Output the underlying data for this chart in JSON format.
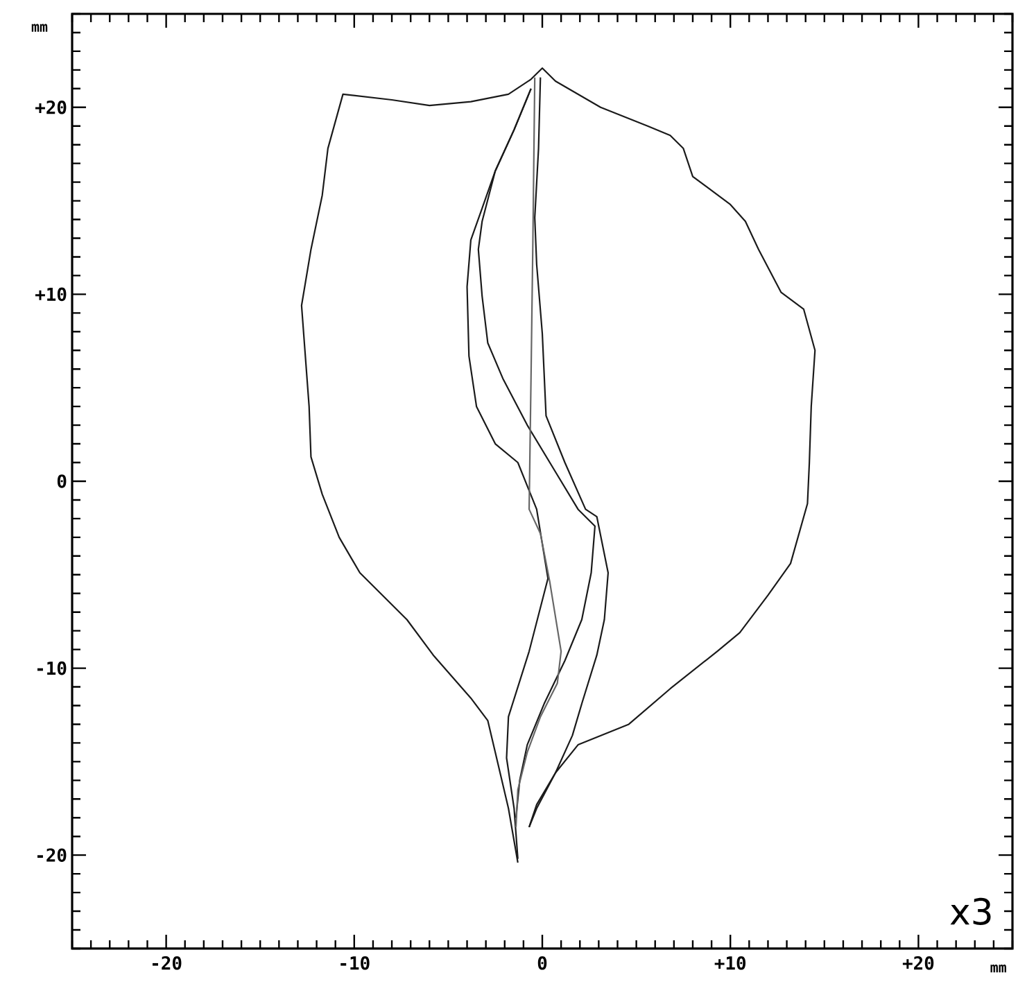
{
  "chart_data": {
    "type": "line",
    "xlabel": "mm",
    "ylabel": "mm",
    "annotations": [
      "x3"
    ],
    "xlim": [
      -25,
      25
    ],
    "ylim": [
      -25,
      25
    ],
    "xticks": [
      {
        "value": -25,
        "label": null
      },
      {
        "value": -24,
        "label": null
      },
      {
        "value": -23,
        "label": null
      },
      {
        "value": -22,
        "label": null
      },
      {
        "value": -21,
        "label": null
      },
      -20,
      {
        "value": -19,
        "label": null
      },
      {
        "value": -18,
        "label": null
      },
      {
        "value": -17,
        "label": null
      },
      {
        "value": -16,
        "label": null
      },
      {
        "value": -15,
        "label": null
      },
      {
        "value": -14,
        "label": null
      },
      {
        "value": -13,
        "label": null
      },
      {
        "value": -12,
        "label": null
      },
      {
        "value": -11,
        "label": null
      },
      -10,
      {
        "value": -9,
        "label": null
      },
      {
        "value": -8,
        "label": null
      },
      {
        "value": -7,
        "label": null
      },
      {
        "value": -6,
        "label": null
      },
      {
        "value": -5,
        "label": null
      },
      {
        "value": -4,
        "label": null
      },
      {
        "value": -3,
        "label": null
      },
      {
        "value": -2,
        "label": null
      },
      {
        "value": -1,
        "label": null
      },
      0,
      {
        "value": 1,
        "label": null
      },
      {
        "value": 2,
        "label": null
      },
      {
        "value": 3,
        "label": null
      },
      {
        "value": 4,
        "label": null
      },
      {
        "value": 5,
        "label": null
      },
      {
        "value": 6,
        "label": null
      },
      {
        "value": 7,
        "label": null
      },
      {
        "value": 8,
        "label": null
      },
      {
        "value": 9,
        "label": null
      },
      {
        "value": 10,
        "label": "+10"
      },
      {
        "value": 11,
        "label": null
      },
      {
        "value": 12,
        "label": null
      },
      {
        "value": 13,
        "label": null
      },
      {
        "value": 14,
        "label": null
      },
      {
        "value": 15,
        "label": null
      },
      {
        "value": 16,
        "label": null
      },
      {
        "value": 17,
        "label": null
      },
      {
        "value": 18,
        "label": null
      },
      {
        "value": 19,
        "label": null
      },
      {
        "value": 20,
        "label": "+20"
      },
      {
        "value": 21,
        "label": null
      },
      {
        "value": 22,
        "label": null
      },
      {
        "value": 23,
        "label": null
      },
      {
        "value": 24,
        "label": null
      },
      {
        "value": 25,
        "label": null
      }
    ],
    "yticks": [
      {
        "value": -25,
        "label": null
      },
      {
        "value": -24,
        "label": null
      },
      {
        "value": -23,
        "label": null
      },
      {
        "value": -22,
        "label": null
      },
      {
        "value": -21,
        "label": null
      },
      -20,
      {
        "value": -19,
        "label": null
      },
      {
        "value": -18,
        "label": null
      },
      {
        "value": -17,
        "label": null
      },
      {
        "value": -16,
        "label": null
      },
      {
        "value": -15,
        "label": null
      },
      {
        "value": -14,
        "label": null
      },
      {
        "value": -13,
        "label": null
      },
      {
        "value": -12,
        "label": null
      },
      {
        "value": -11,
        "label": null
      },
      -10,
      {
        "value": -9,
        "label": null
      },
      {
        "value": -8,
        "label": null
      },
      {
        "value": -7,
        "label": null
      },
      {
        "value": -6,
        "label": null
      },
      {
        "value": -5,
        "label": null
      },
      {
        "value": -4,
        "label": null
      },
      {
        "value": -3,
        "label": null
      },
      {
        "value": -2,
        "label": null
      },
      {
        "value": -1,
        "label": null
      },
      0,
      {
        "value": 1,
        "label": null
      },
      {
        "value": 2,
        "label": null
      },
      {
        "value": 3,
        "label": null
      },
      {
        "value": 4,
        "label": null
      },
      {
        "value": 5,
        "label": null
      },
      {
        "value": 6,
        "label": null
      },
      {
        "value": 7,
        "label": null
      },
      {
        "value": 8,
        "label": null
      },
      {
        "value": 9,
        "label": null
      },
      {
        "value": 10,
        "label": "+10"
      },
      {
        "value": 11,
        "label": null
      },
      {
        "value": 12,
        "label": null
      },
      {
        "value": 13,
        "label": null
      },
      {
        "value": 14,
        "label": null
      },
      {
        "value": 15,
        "label": null
      },
      {
        "value": 16,
        "label": null
      },
      {
        "value": 17,
        "label": null
      },
      {
        "value": 18,
        "label": null
      },
      {
        "value": 19,
        "label": null
      },
      {
        "value": 20,
        "label": "+20"
      },
      {
        "value": 21,
        "label": null
      },
      {
        "value": 22,
        "label": null
      },
      {
        "value": 23,
        "label": null
      },
      {
        "value": 24,
        "label": null
      },
      {
        "value": 25,
        "label": null
      }
    ],
    "marker": "none",
    "line_style": "solid",
    "series": [
      {
        "color": "#1a1a1a",
        "x": [
          -1.3,
          -1.8,
          -2.5,
          -2.9,
          -3.8,
          -5.8,
          -7.2,
          -9.7,
          -10.8,
          -11.7,
          -12.3,
          -12.4,
          -12.8,
          -12.3,
          -11.7,
          -11.4,
          -10.6,
          -8.0,
          -6.0,
          -3.8,
          -1.8,
          -0.6,
          0,
          0.7,
          3.1,
          5.6,
          6.8,
          7.5,
          8.0,
          10.0,
          10.8,
          11.5,
          12.7,
          13.9,
          14.5,
          14.3,
          14.2,
          14.1,
          13.2,
          12.0,
          10.5,
          9.3,
          6.8,
          4.6,
          1.9,
          0.7,
          -0.3,
          -0.7
        ],
        "values": [
          -20.4,
          -17.5,
          -14.5,
          -12.8,
          -11.6,
          -9.3,
          -7.4,
          -4.9,
          -3.0,
          -0.7,
          1.3,
          4.0,
          9.4,
          12.4,
          15.3,
          17.8,
          20.7,
          20.4,
          20.1,
          20.3,
          20.7,
          21.5,
          22.1,
          21.4,
          20.0,
          19.0,
          18.5,
          17.8,
          16.3,
          14.8,
          13.9,
          12.4,
          10.1,
          9.2,
          7.0,
          4.0,
          1.0,
          -1.2,
          -4.4,
          -6.1,
          -8.1,
          -9.1,
          -11.1,
          -13.0,
          -14.1,
          -15.6,
          -17.3,
          -18.5
        ]
      },
      {
        "color": "#1a1a1a",
        "x": [
          -0.6,
          -1.5,
          -2.5,
          -3.2,
          -3.8,
          -4.0,
          -3.9,
          -3.5,
          -2.5,
          -1.3,
          -0.3,
          0.3,
          -0.7,
          -1.8,
          -1.9,
          -1.5,
          -1.3
        ],
        "values": [
          21.0,
          18.8,
          16.6,
          14.6,
          12.9,
          10.4,
          6.7,
          4.0,
          2.0,
          1.0,
          -1.5,
          -5.2,
          -9.1,
          -12.6,
          -14.8,
          -17.5,
          -20.2
        ]
      },
      {
        "color": "#1a1a1a",
        "x": [
          -0.6,
          -1.5,
          -2.5,
          -3.2,
          -3.4,
          -3.2,
          -2.9,
          -2.1,
          -0.8,
          0.7,
          1.9,
          2.8,
          2.6,
          2.1,
          1.2,
          0.1,
          -0.8,
          -1.2,
          -1.4
        ],
        "values": [
          21.0,
          18.8,
          16.6,
          13.9,
          12.4,
          9.9,
          7.4,
          5.5,
          3.0,
          0.5,
          -1.5,
          -2.4,
          -4.9,
          -7.4,
          -9.6,
          -11.9,
          -14.1,
          -16.0,
          -18.0
        ]
      },
      {
        "color": "#1a1a1a",
        "x": [
          -0.1,
          -0.2,
          -0.4,
          -0.3,
          0.0,
          0.2,
          1.2,
          2.3,
          2.9,
          3.5,
          3.3,
          2.9,
          2.1,
          1.6,
          0.7,
          -0.3,
          -0.7
        ],
        "values": [
          21.6,
          17.8,
          14.1,
          11.6,
          7.9,
          3.5,
          1.0,
          -1.5,
          -1.9,
          -4.9,
          -7.4,
          -9.3,
          -11.9,
          -13.6,
          -15.6,
          -17.5,
          -18.5
        ]
      },
      {
        "color": "#666666",
        "x": [
          -0.4,
          -0.5,
          -0.6,
          -0.7,
          -0.1,
          0.4,
          1.0,
          0.8,
          -0.1,
          -0.8,
          -1.3,
          -1.4
        ],
        "values": [
          21.6,
          12.9,
          5.5,
          -1.5,
          -2.8,
          -5.4,
          -9.1,
          -10.8,
          -12.6,
          -14.5,
          -16.5,
          -18.5
        ]
      }
    ]
  }
}
